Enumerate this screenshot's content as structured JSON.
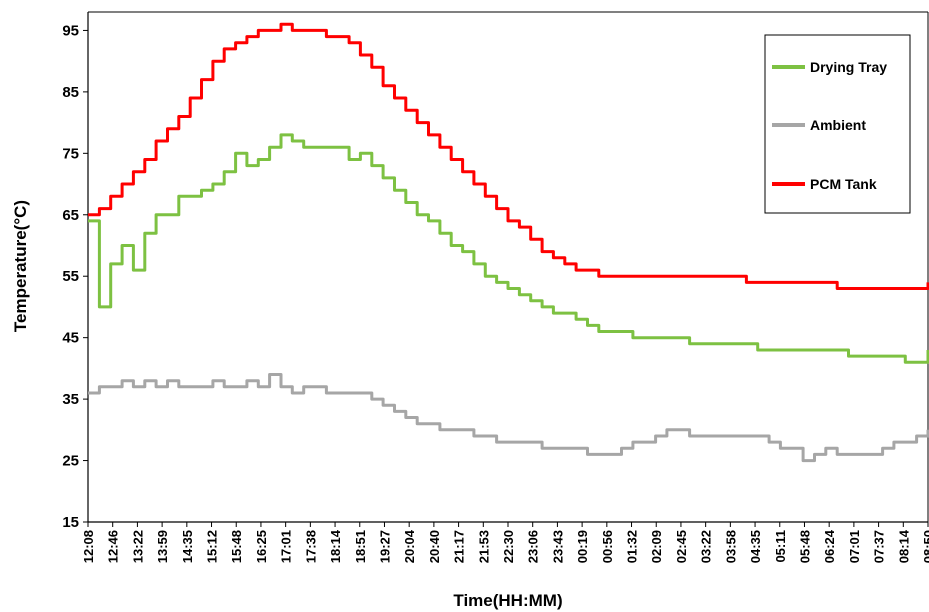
{
  "chart_data": {
    "type": "line",
    "title": "",
    "xlabel": "Time(HH:MM)",
    "ylabel": "Temperature(°C)",
    "ylim": [
      15,
      98
    ],
    "yticks": [
      15,
      25,
      35,
      45,
      55,
      65,
      75,
      85,
      95
    ],
    "grid": false,
    "legend_position": "top-right",
    "x_ticks": [
      "12:08",
      "12:46",
      "13:22",
      "13:59",
      "14:35",
      "15:12",
      "15:48",
      "16:25",
      "17:01",
      "17:38",
      "18:14",
      "18:51",
      "19:27",
      "20:04",
      "20:40",
      "21:17",
      "21:53",
      "22:30",
      "23:06",
      "23:43",
      "00:19",
      "00:56",
      "01:32",
      "02:09",
      "02:45",
      "03:22",
      "03:58",
      "04:35",
      "05:11",
      "05:48",
      "06:24",
      "07:01",
      "07:37",
      "08:14",
      "08:50"
    ],
    "series": [
      {
        "name": "Drying Tray",
        "color": "#7dc142",
        "values": [
          64,
          50,
          57,
          60,
          56,
          62,
          65,
          65,
          68,
          68,
          69,
          70,
          72,
          75,
          73,
          74,
          76,
          78,
          77,
          76,
          76,
          76,
          76,
          74,
          75,
          73,
          71,
          69,
          67,
          65,
          64,
          62,
          60,
          59,
          57,
          55,
          54,
          53,
          52,
          51,
          50,
          49,
          49,
          48,
          47,
          46,
          46,
          46,
          45,
          45,
          45,
          45,
          45,
          44,
          44,
          44,
          44,
          44,
          44,
          43,
          43,
          43,
          43,
          43,
          43,
          43,
          43,
          42,
          42,
          42,
          42,
          42,
          41,
          41,
          43
        ]
      },
      {
        "name": "Ambient",
        "color": "#a6a6a6",
        "values": [
          36,
          37,
          37,
          38,
          37,
          38,
          37,
          38,
          37,
          37,
          37,
          38,
          37,
          37,
          38,
          37,
          39,
          37,
          36,
          37,
          37,
          36,
          36,
          36,
          36,
          35,
          34,
          33,
          32,
          31,
          31,
          30,
          30,
          30,
          29,
          29,
          28,
          28,
          28,
          28,
          27,
          27,
          27,
          27,
          26,
          26,
          26,
          27,
          28,
          28,
          29,
          30,
          30,
          29,
          29,
          29,
          29,
          29,
          29,
          29,
          28,
          27,
          27,
          25,
          26,
          27,
          26,
          26,
          26,
          26,
          27,
          28,
          28,
          29,
          30
        ]
      },
      {
        "name": "PCM Tank",
        "color": "#ff0000",
        "values": [
          65,
          66,
          68,
          70,
          72,
          74,
          77,
          79,
          81,
          84,
          87,
          90,
          92,
          93,
          94,
          95,
          95,
          96,
          95,
          95,
          95,
          94,
          94,
          93,
          91,
          89,
          86,
          84,
          82,
          80,
          78,
          76,
          74,
          72,
          70,
          68,
          66,
          64,
          63,
          61,
          59,
          58,
          57,
          56,
          56,
          55,
          55,
          55,
          55,
          55,
          55,
          55,
          55,
          55,
          55,
          55,
          55,
          55,
          54,
          54,
          54,
          54,
          54,
          54,
          54,
          54,
          53,
          53,
          53,
          53,
          53,
          53,
          53,
          53,
          54
        ]
      }
    ]
  }
}
